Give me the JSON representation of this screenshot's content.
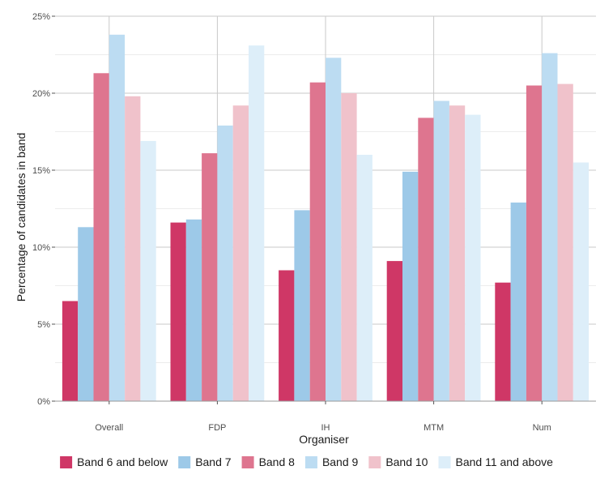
{
  "chart_data": {
    "type": "bar",
    "title": "",
    "xlabel": "Organiser",
    "ylabel": "Percentage of candidates in band",
    "categories": [
      "Overall",
      "FDP",
      "IH",
      "MTM",
      "Num"
    ],
    "ylim": [
      0,
      25
    ],
    "yticks": [
      0,
      5,
      10,
      15,
      20,
      25
    ],
    "ytick_labels": [
      "0%",
      "5%",
      "10%",
      "15%",
      "20%",
      "25%"
    ],
    "grid": true,
    "legend_position": "bottom",
    "series": [
      {
        "name": "Band 6 and below",
        "color": "#cf3766",
        "values": [
          6.5,
          11.6,
          8.5,
          9.1,
          7.7
        ]
      },
      {
        "name": "Band 7",
        "color": "#9dc9e8",
        "values": [
          11.3,
          11.8,
          12.4,
          14.9,
          12.9
        ]
      },
      {
        "name": "Band 8",
        "color": "#de758f",
        "values": [
          21.3,
          16.1,
          20.7,
          18.4,
          20.5
        ]
      },
      {
        "name": "Band 9",
        "color": "#bcdcf2",
        "values": [
          23.8,
          17.9,
          22.3,
          19.5,
          22.6
        ]
      },
      {
        "name": "Band 10",
        "color": "#f0c2cb",
        "values": [
          19.8,
          19.2,
          20.0,
          19.2,
          20.6
        ]
      },
      {
        "name": "Band 11 and above",
        "color": "#ddeef9",
        "values": [
          16.9,
          23.1,
          16.0,
          18.6,
          15.5
        ]
      }
    ]
  }
}
